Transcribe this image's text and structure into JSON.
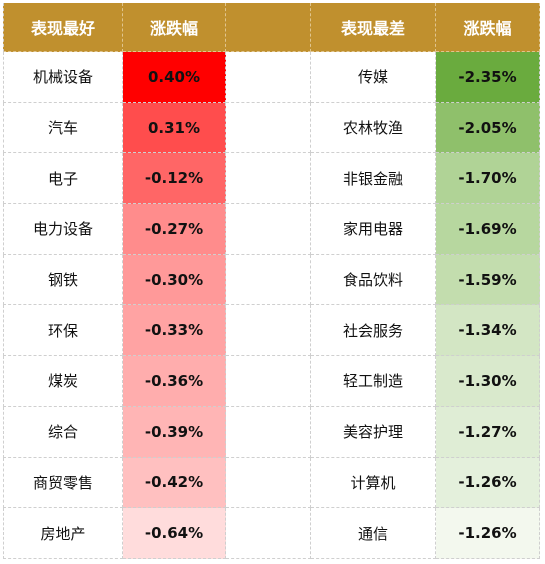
{
  "headers": {
    "best_label": "表现最好",
    "best_change": "涨跌幅",
    "worst_label": "表现最差",
    "worst_change": "涨跌幅"
  },
  "best": [
    {
      "name": "机械设备",
      "value": "0.40%",
      "color": "#ff0000"
    },
    {
      "name": "汽车",
      "value": "0.31%",
      "color": "#ff4d4d"
    },
    {
      "name": "电子",
      "value": "-0.12%",
      "color": "#ff6666"
    },
    {
      "name": "电力设备",
      "value": "-0.27%",
      "color": "#ff8c8c"
    },
    {
      "name": "钢铁",
      "value": "-0.30%",
      "color": "#ff9999"
    },
    {
      "name": "环保",
      "value": "-0.33%",
      "color": "#ffa3a3"
    },
    {
      "name": "煤炭",
      "value": "-0.36%",
      "color": "#ffadad"
    },
    {
      "name": "综合",
      "value": "-0.39%",
      "color": "#ffb5b5"
    },
    {
      "name": "商贸零售",
      "value": "-0.42%",
      "color": "#ffc0c0"
    },
    {
      "name": "房地产",
      "value": "-0.64%",
      "color": "#ffdcdc"
    }
  ],
  "worst": [
    {
      "name": "传媒",
      "value": "-2.35%",
      "color": "#6aab3e"
    },
    {
      "name": "农林牧渔",
      "value": "-2.05%",
      "color": "#8fc06b"
    },
    {
      "name": "非银金融",
      "value": "-1.70%",
      "color": "#b0d396"
    },
    {
      "name": "家用电器",
      "value": "-1.69%",
      "color": "#b7d79f"
    },
    {
      "name": "食品饮料",
      "value": "-1.59%",
      "color": "#c3ddae"
    },
    {
      "name": "社会服务",
      "value": "-1.34%",
      "color": "#d3e6c4"
    },
    {
      "name": "轻工制造",
      "value": "-1.30%",
      "color": "#d9e9cc"
    },
    {
      "name": "美容护理",
      "value": "-1.27%",
      "color": "#dfedd5"
    },
    {
      "name": "计算机",
      "value": "-1.26%",
      "color": "#e4f0dc"
    },
    {
      "name": "通信",
      "value": "-1.26%",
      "color": "#f3f8ee"
    }
  ]
}
